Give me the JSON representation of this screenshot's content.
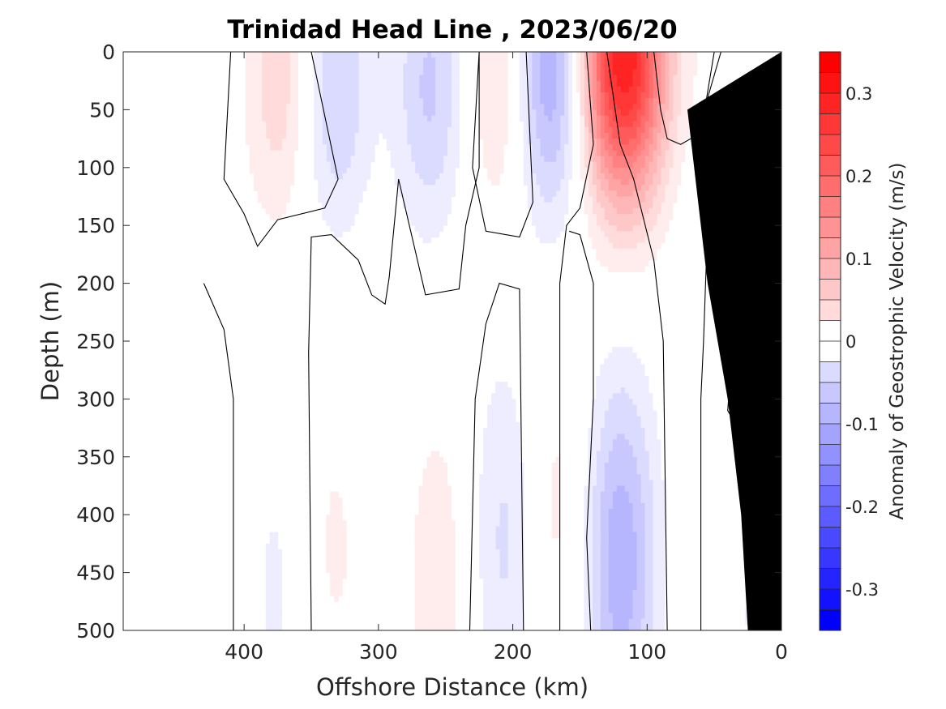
{
  "chart_data": {
    "type": "heatmap",
    "title": "Trinidad Head Line , 2023/06/20",
    "xlabel": "Offshore Distance (km)",
    "ylabel": "Depth (m)",
    "colorbar_label": "Anomaly of Geostrophic Velocity (m/s)",
    "xlim": [
      490,
      0
    ],
    "ylim": [
      0,
      500
    ],
    "x_reversed": true,
    "y_reversed": true,
    "x_ticks": [
      400,
      300,
      200,
      100,
      0
    ],
    "y_ticks": [
      0,
      50,
      100,
      150,
      200,
      250,
      300,
      350,
      400,
      450,
      500
    ],
    "colorbar_ticks": [
      0.3,
      0.2,
      0.1,
      0,
      -0.1,
      -0.2,
      -0.3
    ],
    "colorbar_ticklabels": [
      "0.3",
      "0.2",
      "0.1",
      "0",
      "-0.1",
      "-0.2",
      "-0.3"
    ],
    "colorbar_range": [
      -0.35,
      0.35
    ],
    "colorbar_levels": 28,
    "colors": {
      "positive": "#ff0000",
      "negative": "#0000ff",
      "zero": "#ffffff",
      "bathymetry": "#000000"
    },
    "velocity_cores": [
      {
        "x": 373,
        "depth": 25,
        "v": 0.07
      },
      {
        "x": 333,
        "depth": 30,
        "v": -0.08
      },
      {
        "x": 262,
        "depth": 30,
        "v": -0.08
      },
      {
        "x": 205,
        "depth": 20,
        "v": 0.1
      },
      {
        "x": 170,
        "depth": 15,
        "v": -0.18
      },
      {
        "x": 120,
        "depth": 5,
        "v": 0.35
      },
      {
        "x": 80,
        "depth": 25,
        "v": -0.03
      },
      {
        "x": 40,
        "depth": 5,
        "v": 0.03
      },
      {
        "x": 20,
        "depth": 10,
        "v": -0.04
      },
      {
        "x": 20,
        "depth": 170,
        "v": 0.03
      },
      {
        "x": 335,
        "depth": 430,
        "v": 0.03
      },
      {
        "x": 375,
        "depth": 460,
        "v": -0.03
      },
      {
        "x": 255,
        "depth": 450,
        "v": 0.04
      },
      {
        "x": 205,
        "depth": 420,
        "v": -0.06
      },
      {
        "x": 170,
        "depth": 400,
        "v": 0.04
      },
      {
        "x": 120,
        "depth": 440,
        "v": -0.12
      },
      {
        "x": 15,
        "depth": 480,
        "v": -0.03
      }
    ],
    "zero_contours": [
      [
        [
          410,
          0
        ],
        [
          415,
          110
        ],
        [
          400,
          140
        ],
        [
          390,
          168
        ],
        [
          375,
          145
        ],
        [
          340,
          135
        ],
        [
          330,
          110
        ],
        [
          350,
          0
        ]
      ],
      [
        [
          430,
          200
        ],
        [
          415,
          240
        ],
        [
          408,
          300
        ],
        [
          408,
          500
        ]
      ],
      [
        [
          350,
          500
        ],
        [
          352,
          260
        ],
        [
          350,
          160
        ],
        [
          335,
          158
        ],
        [
          315,
          180
        ],
        [
          305,
          210
        ],
        [
          295,
          218
        ],
        [
          292,
          195
        ],
        [
          285,
          110
        ],
        [
          275,
          160
        ],
        [
          265,
          210
        ],
        [
          240,
          205
        ],
        [
          235,
          150
        ],
        [
          225,
          100
        ],
        [
          225,
          0
        ]
      ],
      [
        [
          232,
          500
        ],
        [
          228,
          300
        ],
        [
          220,
          235
        ],
        [
          210,
          200
        ],
        [
          195,
          205
        ],
        [
          192,
          500
        ]
      ],
      [
        [
          225,
          0
        ],
        [
          230,
          100
        ],
        [
          220,
          155
        ],
        [
          195,
          160
        ],
        [
          185,
          130
        ],
        [
          190,
          0
        ]
      ],
      [
        [
          165,
          500
        ],
        [
          165,
          200
        ],
        [
          160,
          150
        ],
        [
          150,
          135
        ],
        [
          140,
          80
        ],
        [
          145,
          0
        ]
      ],
      [
        [
          142,
          500
        ],
        [
          145,
          420
        ],
        [
          140,
          300
        ],
        [
          140,
          200
        ],
        [
          150,
          158
        ],
        [
          158,
          155
        ]
      ],
      [
        [
          85,
          500
        ],
        [
          88,
          250
        ],
        [
          95,
          180
        ],
        [
          110,
          110
        ],
        [
          120,
          80
        ],
        [
          130,
          0
        ]
      ],
      [
        [
          60,
          500
        ],
        [
          60,
          300
        ],
        [
          58,
          250
        ],
        [
          55,
          150
        ],
        [
          45,
          160
        ],
        [
          40,
          200
        ],
        [
          38,
          280
        ],
        [
          40,
          310
        ],
        [
          30,
          330
        ],
        [
          20,
          320
        ]
      ],
      [
        [
          95,
          0
        ],
        [
          90,
          50
        ],
        [
          85,
          75
        ],
        [
          75,
          80
        ],
        [
          60,
          70
        ],
        [
          50,
          0
        ]
      ],
      [
        [
          45,
          0
        ],
        [
          55,
          40
        ],
        [
          45,
          55
        ],
        [
          25,
          50
        ],
        [
          10,
          42
        ]
      ]
    ],
    "bathymetry": [
      [
        0,
        0
      ],
      [
        0,
        500
      ],
      [
        25,
        500
      ],
      [
        30,
        400
      ],
      [
        40,
        300
      ],
      [
        55,
        200
      ],
      [
        65,
        100
      ],
      [
        70,
        50
      ],
      [
        0,
        0
      ]
    ]
  }
}
